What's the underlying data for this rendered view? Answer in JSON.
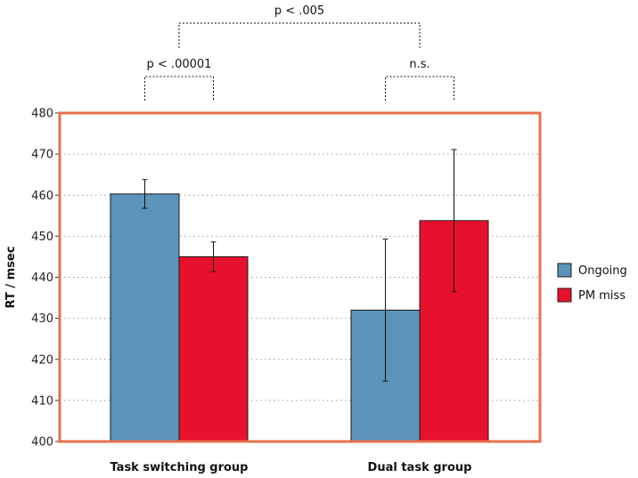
{
  "chart_data": {
    "type": "bar",
    "title": "",
    "xlabel": "",
    "ylabel": "RT / msec",
    "ylim": [
      400,
      480
    ],
    "yticks": [
      400,
      410,
      420,
      430,
      440,
      450,
      460,
      470,
      480
    ],
    "grid": true,
    "legend_position": "right",
    "categories": [
      "Task switching group",
      "Dual task group"
    ],
    "series": [
      {
        "name": "Ongoing",
        "color": "#5b93bb",
        "values": [
          460.3,
          432.0
        ],
        "error": [
          3.5,
          17.3
        ]
      },
      {
        "name": "PM miss",
        "color": "#e8112d",
        "values": [
          445.0,
          453.8
        ],
        "error": [
          3.6,
          17.3
        ]
      }
    ],
    "annotations": [
      {
        "label": "p < .00001",
        "between": [
          "Task switching group:Ongoing",
          "Task switching group:PM miss"
        ]
      },
      {
        "label": "n.s.",
        "between": [
          "Dual task group:Ongoing",
          "Dual task group:PM miss"
        ]
      },
      {
        "label": "p < .005",
        "between": [
          "Task switching group",
          "Dual task group"
        ]
      }
    ],
    "frame_color": "#e8704f"
  }
}
